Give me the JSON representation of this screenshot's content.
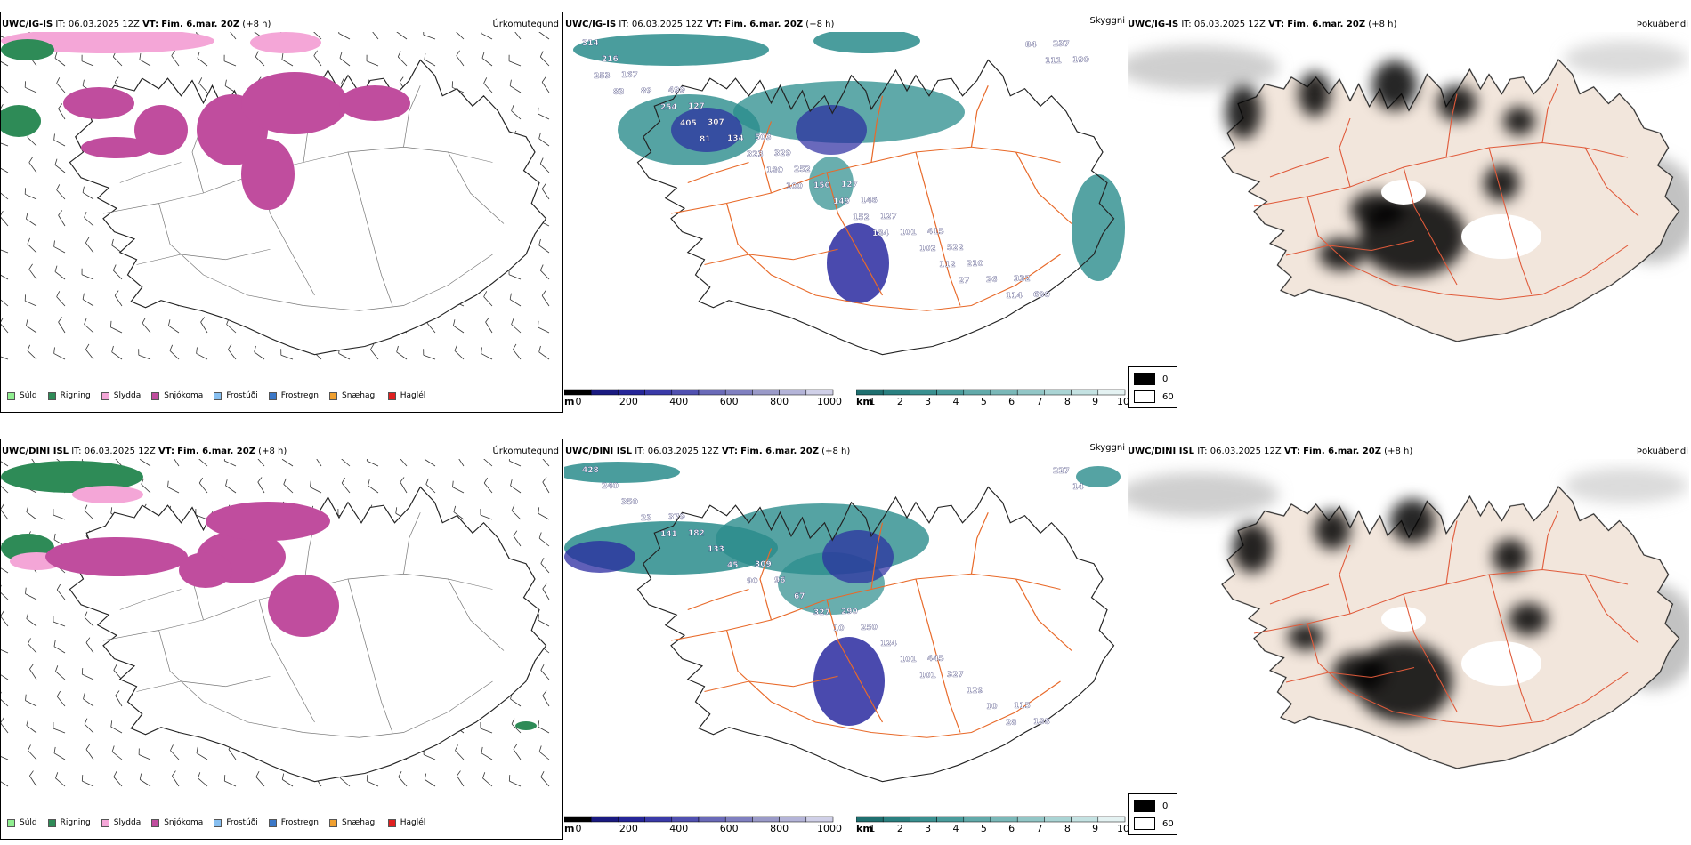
{
  "rows": [
    {
      "model": "UWC/IG-IS",
      "it_label": "IT:",
      "it_value": "06.03.2025 12Z",
      "vt_label": "VT:",
      "vt_value": "Fim. 6.mar. 20Z",
      "lead": "(+8 h)",
      "panels": {
        "precip": "Úrkomutegund",
        "cloud": "Skyggni",
        "fog": "Þokuábendi"
      },
      "cloud_labels": [
        "314",
        "499",
        "503",
        "127",
        "415",
        "332",
        "216",
        "127",
        "329",
        "146",
        "522",
        "690",
        "167",
        "307",
        "252",
        "127",
        "210",
        "237",
        "89",
        "134",
        "150",
        "101",
        "26",
        "190",
        "254",
        "323",
        "149",
        "102",
        "114",
        "253",
        "405",
        "180",
        "152",
        "112",
        "84",
        "83",
        "81",
        "100",
        "184",
        "27",
        "111"
      ]
    },
    {
      "model": "UWC/DINI ISL",
      "it_label": "IT:",
      "it_value": "06.03.2025 12Z",
      "vt_label": "VT:",
      "vt_value": "Fim. 6.mar. 20Z",
      "lead": "(+8 h)",
      "panels": {
        "precip": "Úrkomutegund",
        "cloud": "Skyggni",
        "fog": "Þokuábendi"
      },
      "cloud_labels": [
        "428",
        "379",
        "309",
        "290",
        "445",
        "115",
        "240",
        "182",
        "96",
        "250",
        "327",
        "188",
        "350",
        "133",
        "67",
        "124",
        "129",
        "227",
        "23",
        "45",
        "327",
        "101",
        "10",
        "14",
        "141",
        "90",
        "10",
        "101",
        "28"
      ]
    }
  ],
  "precip_legend": [
    {
      "label": "Súld",
      "color": "#90ee90"
    },
    {
      "label": "Rigning",
      "color": "#2e8b57"
    },
    {
      "label": "Slydda",
      "color": "#f4a6d7"
    },
    {
      "label": "Snjókoma",
      "color": "#c04d9e"
    },
    {
      "label": "Frostúði",
      "color": "#87bff0"
    },
    {
      "label": "Frostregn",
      "color": "#3b78c8"
    },
    {
      "label": "Snæhagl",
      "color": "#f0a030"
    },
    {
      "label": "Haglél",
      "color": "#e02020"
    }
  ],
  "cloud_base_bar": {
    "unit": "m",
    "ticks": [
      "0",
      "200",
      "400",
      "600",
      "800",
      "1000"
    ],
    "colors": [
      "#000000",
      "#1a1a80",
      "#262698",
      "#3a3aa8",
      "#5050b0",
      "#6a6ab8",
      "#8080c0",
      "#9a9ac8",
      "#b4b4d8",
      "#d0d0e8"
    ]
  },
  "visibility_bar": {
    "unit": "km",
    "ticks": [
      "1",
      "2",
      "3",
      "4",
      "5",
      "6",
      "7",
      "8",
      "9",
      "10"
    ],
    "colors": [
      "#1f6f6f",
      "#2a8080",
      "#3a9090",
      "#4a9c9c",
      "#62aaaa",
      "#7ab8b8",
      "#92c6c6",
      "#aad4d4",
      "#c4e2e2",
      "#e4f2f2"
    ]
  },
  "fog_legend": {
    "min": "0",
    "max": "60"
  },
  "colors": {
    "iceland_fill": "#f2e6dc",
    "roads": "#e86a2a",
    "coast": "#000000",
    "snow": "#c04d9e",
    "rain": "#2e8b57",
    "sleet": "#f4a6d7",
    "cloud_teal": "#2a8c8c",
    "cloud_blue": "#2a2aa0"
  }
}
